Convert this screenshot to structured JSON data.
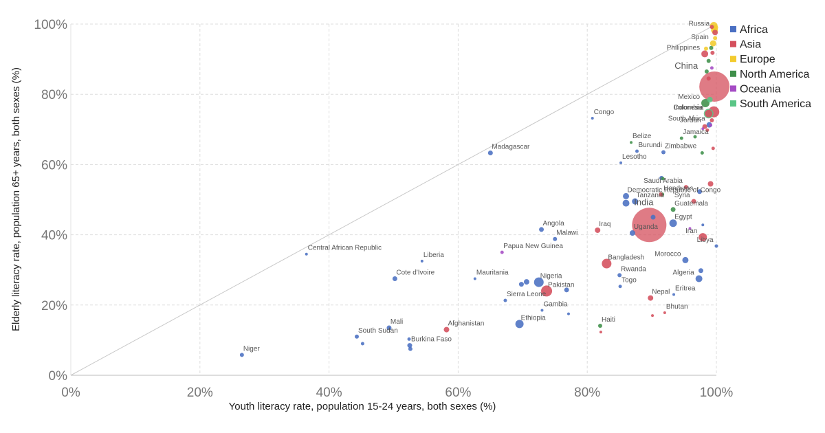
{
  "chart_data": {
    "type": "scatter",
    "title": "",
    "xlabel": "Youth literacy rate, population 15-24 years, both sexes (%)",
    "ylabel": "Elderly literacy rate, population 65+ years, both sexes (%)",
    "xlim": [
      0,
      100
    ],
    "ylim": [
      0,
      100
    ],
    "x_ticks": [
      "0%",
      "20%",
      "40%",
      "60%",
      "80%",
      "100%"
    ],
    "y_ticks": [
      "0%",
      "20%",
      "40%",
      "60%",
      "80%",
      "100%"
    ],
    "grid": true,
    "diagonal_line": true,
    "legend_position": "top-right",
    "colors": {
      "Africa": "#4a6fc2",
      "Asia": "#d44f5c",
      "Europe": "#f3cb2e",
      "North America": "#3f8f4a",
      "Oceania": "#a54bc4",
      "South America": "#5ac586"
    },
    "legend": [
      "Africa",
      "Asia",
      "Europe",
      "North America",
      "Oceania",
      "South America"
    ],
    "points": [
      {
        "label": "Niger",
        "region": "Africa",
        "x": 26.5,
        "y": 5.8,
        "size": 3
      },
      {
        "label": "Central African Republic",
        "region": "Africa",
        "x": 36.5,
        "y": 34.5,
        "size": 2
      },
      {
        "label": "South Sudan",
        "region": "Africa",
        "x": 44.3,
        "y": 11,
        "size": 3
      },
      {
        "label": "",
        "region": "Africa",
        "x": 45.2,
        "y": 9,
        "size": 2.5
      },
      {
        "label": "Mali",
        "region": "Africa",
        "x": 49.3,
        "y": 13.5,
        "size": 3.5
      },
      {
        "label": "Cote d'Ivoire",
        "region": "Africa",
        "x": 50.2,
        "y": 27.5,
        "size": 3.5
      },
      {
        "label": "Burkina Faso",
        "region": "Africa",
        "x": 52.5,
        "y": 8.5,
        "size": 3.5
      },
      {
        "label": "",
        "region": "Africa",
        "x": 52.6,
        "y": 7.5,
        "size": 3
      },
      {
        "label": "",
        "region": "Africa",
        "x": 52.4,
        "y": 10.3,
        "size": 2.5
      },
      {
        "label": "Liberia",
        "region": "Africa",
        "x": 54.4,
        "y": 32.5,
        "size": 2
      },
      {
        "label": "Afghanistan",
        "region": "Asia",
        "x": 58.2,
        "y": 13,
        "size": 4
      },
      {
        "label": "Mauritania",
        "region": "Africa",
        "x": 62.6,
        "y": 27.5,
        "size": 2
      },
      {
        "label": "Madagascar",
        "region": "Africa",
        "x": 65,
        "y": 63.3,
        "size": 3.5
      },
      {
        "label": "Papua New Guinea",
        "region": "Oceania",
        "x": 66.8,
        "y": 35,
        "size": 2.5
      },
      {
        "label": "Sierra Leone",
        "region": "Africa",
        "x": 67.3,
        "y": 21.3,
        "size": 2.5
      },
      {
        "label": "Ethiopia",
        "region": "Africa",
        "x": 69.5,
        "y": 14.6,
        "size": 6
      },
      {
        "label": "",
        "region": "Africa",
        "x": 69.8,
        "y": 25.9,
        "size": 3.5
      },
      {
        "label": "",
        "region": "Africa",
        "x": 70.6,
        "y": 26.6,
        "size": 4
      },
      {
        "label": "Nigeria",
        "region": "Africa",
        "x": 72.5,
        "y": 26.5,
        "size": 7
      },
      {
        "label": "Angola",
        "region": "Africa",
        "x": 72.9,
        "y": 41.5,
        "size": 3.5
      },
      {
        "label": "Gambia",
        "region": "Africa",
        "x": 73,
        "y": 18.5,
        "size": 2
      },
      {
        "label": "Pakistan",
        "region": "Asia",
        "x": 73.7,
        "y": 24,
        "size": 8
      },
      {
        "label": "Malawi",
        "region": "Africa",
        "x": 75,
        "y": 38.8,
        "size": 3
      },
      {
        "label": "",
        "region": "Africa",
        "x": 76.8,
        "y": 24.3,
        "size": 3.5
      },
      {
        "label": "",
        "region": "Africa",
        "x": 77.1,
        "y": 17.5,
        "size": 2
      },
      {
        "label": "Congo",
        "region": "Africa",
        "x": 80.8,
        "y": 73.2,
        "size": 2
      },
      {
        "label": "Iraq",
        "region": "Asia",
        "x": 81.6,
        "y": 41.3,
        "size": 4
      },
      {
        "label": "Haiti",
        "region": "North America",
        "x": 82,
        "y": 14.1,
        "size": 3
      },
      {
        "label": "",
        "region": "Asia",
        "x": 82.1,
        "y": 12.3,
        "size": 2
      },
      {
        "label": "Bangladesh",
        "region": "Asia",
        "x": 83,
        "y": 31.8,
        "size": 7
      },
      {
        "label": "Rwanda",
        "region": "Africa",
        "x": 85,
        "y": 28.5,
        "size": 3
      },
      {
        "label": "Togo",
        "region": "Africa",
        "x": 85.1,
        "y": 25.3,
        "size": 2.5
      },
      {
        "label": "Lesotho",
        "region": "Africa",
        "x": 85.2,
        "y": 60.5,
        "size": 2
      },
      {
        "label": "",
        "region": "Africa",
        "x": 86,
        "y": 49,
        "size": 5
      },
      {
        "label": "Democratic Republic of Congo",
        "region": "Africa",
        "x": 86,
        "y": 51,
        "size": 4.5
      },
      {
        "label": "Belize",
        "region": "North America",
        "x": 86.8,
        "y": 66.3,
        "size": 2
      },
      {
        "label": "Uganda",
        "region": "Africa",
        "x": 87,
        "y": 40.5,
        "size": 4
      },
      {
        "label": "Burundi",
        "region": "Africa",
        "x": 87.7,
        "y": 63.8,
        "size": 2.5
      },
      {
        "label": "Tanzania",
        "region": "Africa",
        "x": 87.4,
        "y": 49.5,
        "size": 4.5
      },
      {
        "label": "India",
        "region": "Asia",
        "x": 89.6,
        "y": 42.8,
        "size": 25
      },
      {
        "label": "Nepal",
        "region": "Asia",
        "x": 89.8,
        "y": 22,
        "size": 4
      },
      {
        "label": "",
        "region": "Asia",
        "x": 90.1,
        "y": 17,
        "size": 2
      },
      {
        "label": "",
        "region": "Africa",
        "x": 90.2,
        "y": 45,
        "size": 3.5
      },
      {
        "label": "",
        "region": "Africa",
        "x": 91.5,
        "y": 56.2,
        "size": 3
      },
      {
        "label": "",
        "region": "North America",
        "x": 91.7,
        "y": 56,
        "size": 2.5
      },
      {
        "label": "Zimbabwe",
        "region": "Africa",
        "x": 91.8,
        "y": 63.5,
        "size": 3
      },
      {
        "label": "Honduras",
        "region": "North America",
        "x": 91.6,
        "y": 51.5,
        "size": 3
      },
      {
        "label": "",
        "region": "Asia",
        "x": 91.4,
        "y": 51.5,
        "size": 3
      },
      {
        "label": "Bhutan",
        "region": "Asia",
        "x": 92,
        "y": 17.8,
        "size": 2
      },
      {
        "label": "Egypt",
        "region": "Africa",
        "x": 93.3,
        "y": 43.3,
        "size": 5.5
      },
      {
        "label": "Guatemala",
        "region": "North America",
        "x": 93.3,
        "y": 47.2,
        "size": 3.5
      },
      {
        "label": "Eritrea",
        "region": "Africa",
        "x": 93.4,
        "y": 23,
        "size": 2
      },
      {
        "label": "Jamaica",
        "region": "North America",
        "x": 94.6,
        "y": 67.5,
        "size": 2.5
      },
      {
        "label": "Saudi Arabia",
        "region": "Asia",
        "x": 95.3,
        "y": 53.6,
        "size": 3
      },
      {
        "label": "Morocco",
        "region": "Africa",
        "x": 95.2,
        "y": 32.8,
        "size": 4.5
      },
      {
        "label": "",
        "region": "Oceania",
        "x": 95.9,
        "y": 41.8,
        "size": 2
      },
      {
        "label": "Syria",
        "region": "Asia",
        "x": 96.5,
        "y": 49.5,
        "size": 3.5
      },
      {
        "label": "",
        "region": "North America",
        "x": 96.7,
        "y": 67.9,
        "size": 2.5
      },
      {
        "label": "Algeria",
        "region": "Africa",
        "x": 97.3,
        "y": 27.5,
        "size": 5
      },
      {
        "label": "",
        "region": "Africa",
        "x": 97.6,
        "y": 29.8,
        "size": 3.5
      },
      {
        "label": "",
        "region": "Africa",
        "x": 97.4,
        "y": 52.3,
        "size": 3.5
      },
      {
        "label": "",
        "region": "Africa",
        "x": 97.9,
        "y": 42.8,
        "size": 2
      },
      {
        "label": "",
        "region": "North America",
        "x": 97.8,
        "y": 63.3,
        "size": 2.5
      },
      {
        "label": "Iran",
        "region": "Asia",
        "x": 97.9,
        "y": 39.3,
        "size": 6
      },
      {
        "label": "",
        "region": "Oceania",
        "x": 97.9,
        "y": 70.2,
        "size": 2
      },
      {
        "label": "Jordan",
        "region": "Asia",
        "x": 98.2,
        "y": 70.8,
        "size": 3.5
      },
      {
        "label": "",
        "region": "Asia",
        "x": 98.6,
        "y": 69.8,
        "size": 2.5
      },
      {
        "label": "South Africa",
        "region": "Africa",
        "x": 98.9,
        "y": 71.3,
        "size": 4
      },
      {
        "label": "Indonesia",
        "region": "Asia",
        "x": 98.8,
        "y": 74.5,
        "size": 5.5
      },
      {
        "label": "",
        "region": "Asia",
        "x": 99.3,
        "y": 72.6,
        "size": 3
      },
      {
        "label": "",
        "region": "Oceania",
        "x": 99.1,
        "y": 71.2,
        "size": 2.5
      },
      {
        "label": "Colombia",
        "region": "South America",
        "x": 98.8,
        "y": 74.5,
        "size": 7
      },
      {
        "label": "",
        "region": "Asia",
        "x": 99.6,
        "y": 75,
        "size": 8
      },
      {
        "label": "Mexico",
        "region": "North America",
        "x": 98.3,
        "y": 77.5,
        "size": 6
      },
      {
        "label": "China",
        "region": "Asia",
        "x": 99.7,
        "y": 82.2,
        "size": 22
      },
      {
        "label": "",
        "region": "Asia",
        "x": 98.8,
        "y": 84.5,
        "size": 3
      },
      {
        "label": "",
        "region": "North America",
        "x": 98.5,
        "y": 86.5,
        "size": 3
      },
      {
        "label": "",
        "region": "South America",
        "x": 99,
        "y": 78.5,
        "size": 4
      },
      {
        "label": "",
        "region": "Oceania",
        "x": 99.3,
        "y": 87.5,
        "size": 2.5
      },
      {
        "label": "",
        "region": "Asia",
        "x": 99.5,
        "y": 64.6,
        "size": 2.5
      },
      {
        "label": "",
        "region": "Asia",
        "x": 99.1,
        "y": 54.5,
        "size": 4
      },
      {
        "label": "Libya",
        "region": "Africa",
        "x": 100,
        "y": 36.8,
        "size": 2.5
      },
      {
        "label": "Philippines",
        "region": "Asia",
        "x": 98.2,
        "y": 91.5,
        "size": 5
      },
      {
        "label": "",
        "region": "Asia",
        "x": 99.4,
        "y": 91.8,
        "size": 3
      },
      {
        "label": "",
        "region": "North America",
        "x": 98.8,
        "y": 89.5,
        "size": 3
      },
      {
        "label": "",
        "region": "Europe",
        "x": 98.4,
        "y": 93,
        "size": 3
      },
      {
        "label": "Spain",
        "region": "Europe",
        "x": 99.5,
        "y": 94.5,
        "size": 4.5
      },
      {
        "label": "",
        "region": "North America",
        "x": 99.2,
        "y": 93.2,
        "size": 3
      },
      {
        "label": "",
        "region": "Europe",
        "x": 99.8,
        "y": 96,
        "size": 3
      },
      {
        "label": "Russia",
        "region": "Europe",
        "x": 99.7,
        "y": 98.3,
        "size": 5
      },
      {
        "label": "",
        "region": "Europe",
        "x": 99.6,
        "y": 99.5,
        "size": 5.5
      },
      {
        "label": "",
        "region": "Asia",
        "x": 99.8,
        "y": 97.6,
        "size": 4
      },
      {
        "label": "",
        "region": "Europe",
        "x": 99.9,
        "y": 99,
        "size": 3.5
      },
      {
        "label": "",
        "region": "Asia",
        "x": 99.3,
        "y": 99.2,
        "size": 3
      }
    ]
  }
}
